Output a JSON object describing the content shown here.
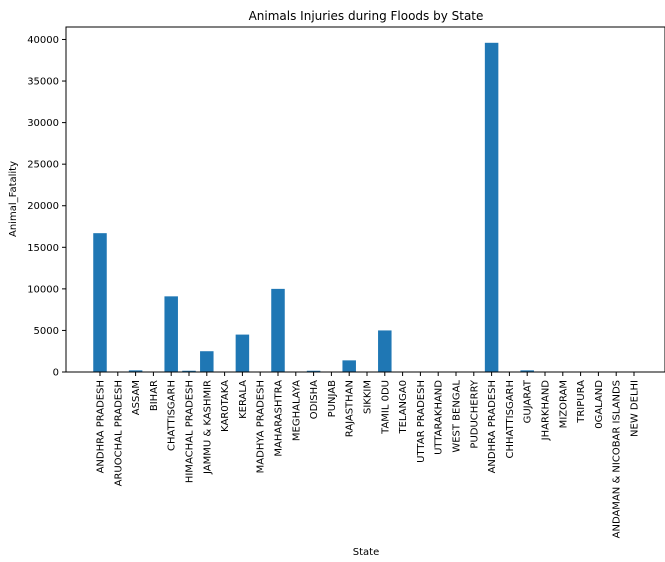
{
  "chart_data": {
    "type": "bar",
    "title": "Animals Injuries during Floods by State",
    "xlabel": "State",
    "ylabel": "Animal_Fatality",
    "ylim": [
      0,
      41500
    ],
    "yticks": [
      0,
      5000,
      10000,
      15000,
      20000,
      25000,
      30000,
      35000,
      40000
    ],
    "grid": false,
    "legend": "none",
    "bar_color": "#1f77b4",
    "categories": [
      "ANDHRA  PRADESH",
      "ARUOCHAL PRADESH",
      "ASSAM",
      "BIHAR",
      "CHATTISGARH",
      "HIMACHAL PRADESH",
      "JAMMU & KASHMIR",
      "KAR0TAKA",
      "KERALA",
      "MADHYA PRADESH",
      "MAHARASHTRA",
      "MEGHALAYA",
      "ODISHA",
      "PUNJAB",
      "RAJASTHAN",
      "SIKKIM",
      "TAMIL 0DU",
      "TELANGA0",
      "UTTAR PRADESH",
      "UTTARAKHAND",
      "WEST BENGAL",
      "PUDUCHERRY",
      "ANDHRA PRADESH",
      "CHHATTISGARH",
      "GUJARAT",
      "JHARKHAND",
      "MIZORAM",
      "TRIPURA",
      "0GALAND",
      "ANDAMAN & NICOBAR ISLANDS",
      "NEW DELHI"
    ],
    "values": [
      16700,
      0,
      200,
      50,
      9100,
      150,
      2500,
      0,
      4500,
      0,
      10000,
      0,
      150,
      0,
      1400,
      0,
      5000,
      50,
      0,
      0,
      0,
      0,
      39600,
      0,
      200,
      0,
      0,
      0,
      0,
      0,
      0
    ]
  }
}
